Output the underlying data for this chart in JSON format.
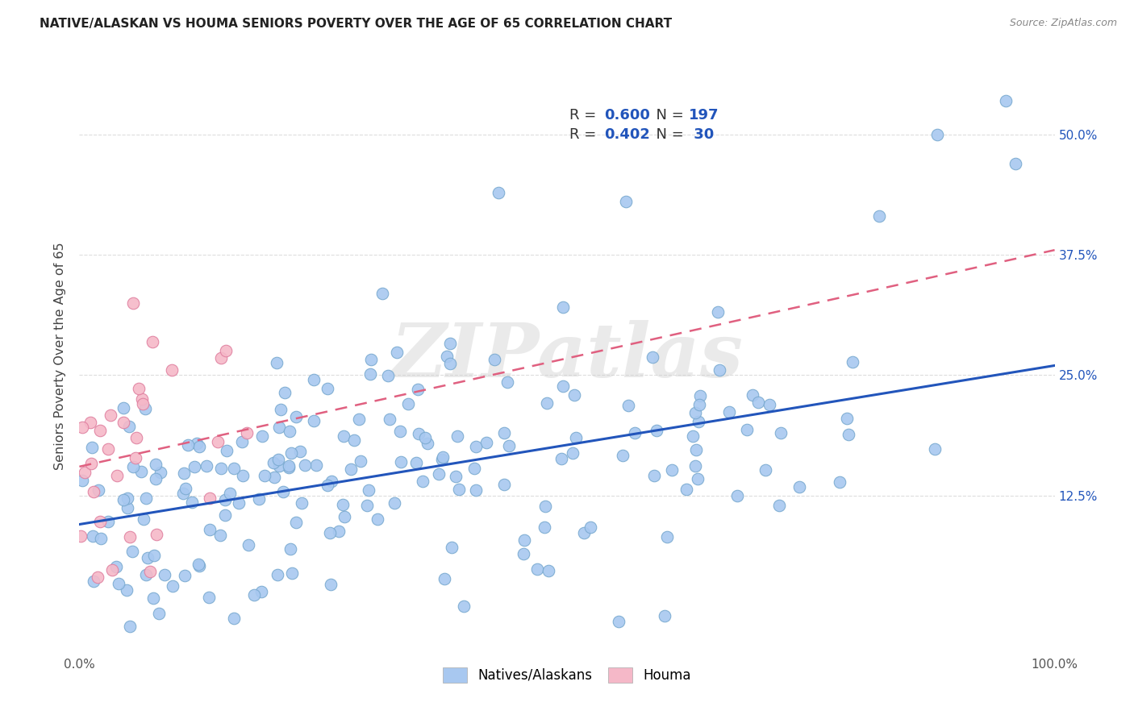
{
  "title": "NATIVE/ALASKAN VS HOUMA SENIORS POVERTY OVER THE AGE OF 65 CORRELATION CHART",
  "source": "Source: ZipAtlas.com",
  "ylabel_label": "Seniors Poverty Over the Age of 65",
  "ytick_labels": [
    "12.5%",
    "25.0%",
    "37.5%",
    "50.0%"
  ],
  "ytick_values": [
    0.125,
    0.25,
    0.375,
    0.5
  ],
  "blue_scatter_color": "#a8c8f0",
  "blue_scatter_edge": "#7aaad0",
  "pink_scatter_color": "#f5b8c8",
  "pink_scatter_edge": "#e080a0",
  "blue_line_color": "#2255bb",
  "pink_line_color": "#e06080",
  "legend_text_color": "#2255bb",
  "legend_box_edge": "#cccccc",
  "watermark_color": "#cccccc",
  "watermark_alpha": 0.4,
  "xlim": [
    0.0,
    1.0
  ],
  "ylim": [
    -0.04,
    0.58
  ],
  "background_color": "#ffffff",
  "grid_color": "#dddddd",
  "blue_line_intercept": 0.095,
  "blue_line_slope": 0.165,
  "pink_line_intercept": 0.155,
  "pink_line_slope": 0.225
}
